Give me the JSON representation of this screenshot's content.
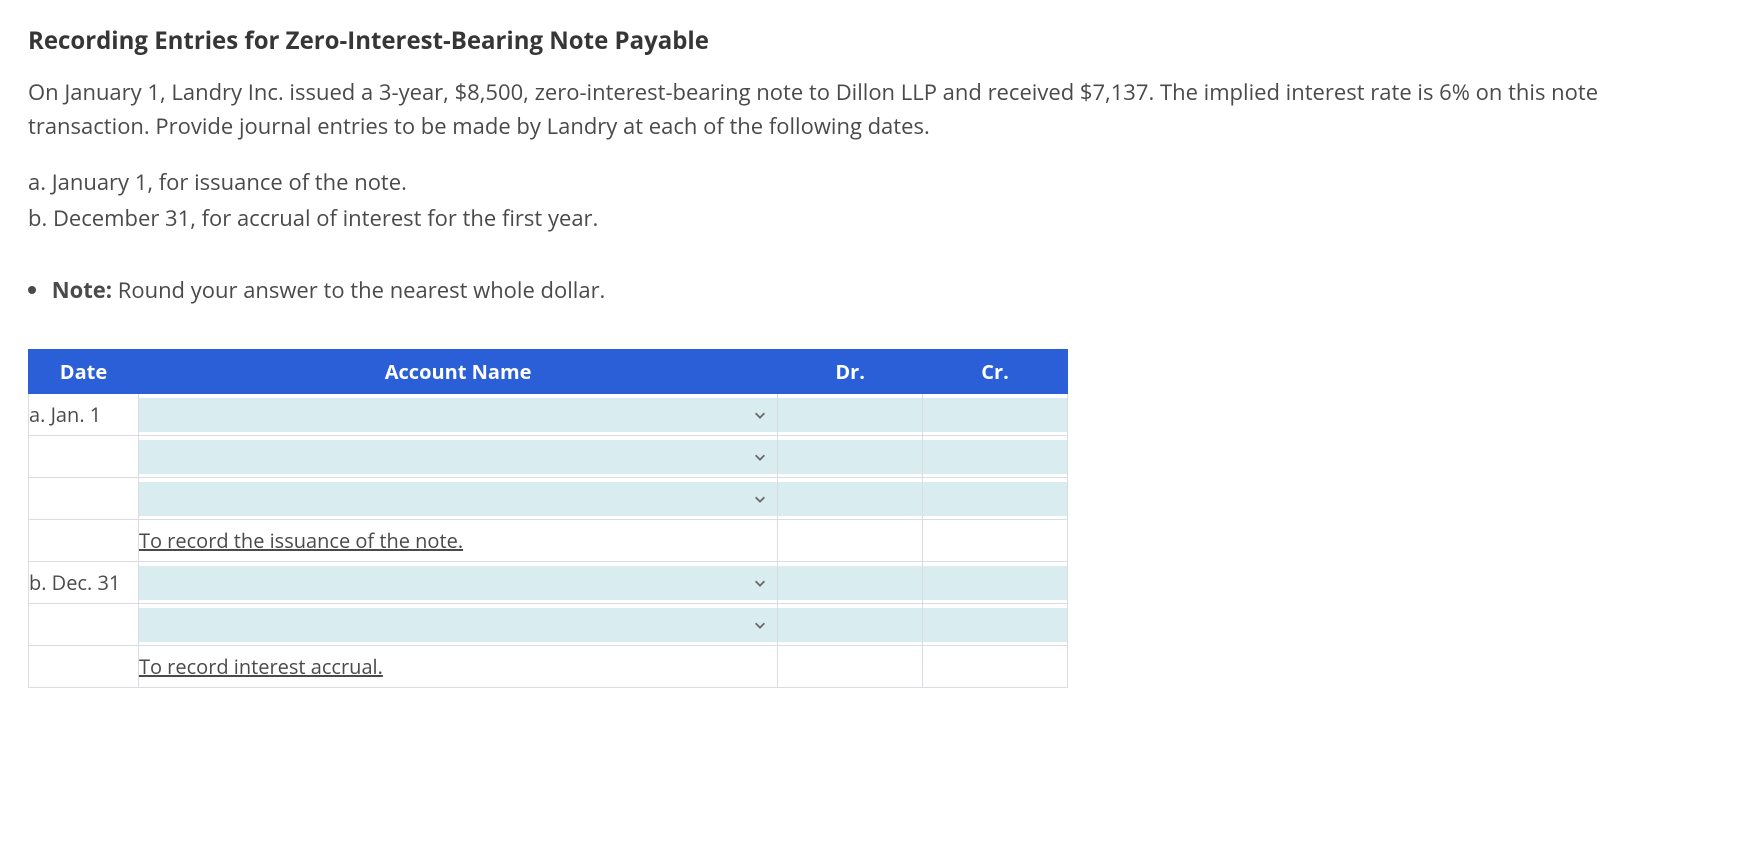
{
  "heading": "Recording Entries for Zero-Interest-Bearing Note Payable",
  "prompt": "On January 1, Landry Inc. issued a 3-year, $8,500, zero-interest-bearing note to Dillon LLP and received $7,137. The implied interest rate is 6% on this note transaction. Provide journal entries to be made by Landry at each of the following dates.",
  "subitems": {
    "a": "a. January 1, for issuance of the note.",
    "b": "b. December 31, for accrual of interest for the first year."
  },
  "note": {
    "label": "Note:",
    "text": " Round your answer to the nearest whole dollar."
  },
  "table": {
    "headers": {
      "date": "Date",
      "account": "Account Name",
      "dr": "Dr.",
      "cr": "Cr."
    },
    "rows": [
      {
        "date": "a. Jan. 1",
        "type": "entry"
      },
      {
        "date": "",
        "type": "entry"
      },
      {
        "date": "",
        "type": "entry"
      },
      {
        "date": "",
        "type": "desc",
        "desc": "To record the issuance of the note."
      },
      {
        "date": "b. Dec. 31",
        "type": "entry"
      },
      {
        "date": "",
        "type": "entry"
      },
      {
        "date": "",
        "type": "desc",
        "desc": "To record interest accrual."
      }
    ]
  },
  "colors": {
    "header_bg": "#2a5fd7",
    "input_bg": "#d9ecef",
    "border": "#d9dde1",
    "text": "#4a4a4a"
  }
}
